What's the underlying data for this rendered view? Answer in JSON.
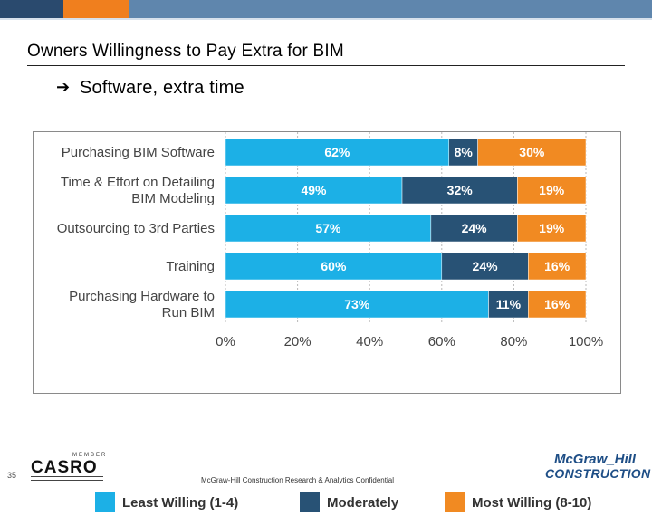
{
  "slide": {
    "title": "Owners Willingness to Pay Extra for BIM",
    "bullet_icon": "arrow-right-icon",
    "bullet_glyph": "➔",
    "bullet_text": "Software, extra time",
    "page_number": "35",
    "footer_text": "McGraw-Hill Construction Research & Analytics Confidential",
    "casro_logo_text": "CASRO",
    "casro_tagline": "MEMBER",
    "mh_logo_line1": "McGraw_Hill",
    "mh_logo_line2": "CONSTRUCTION"
  },
  "colors": {
    "least": "#1cb0e6",
    "moderately": "#285275",
    "most": "#f18a22",
    "topbar_dark": "#2a4a6e",
    "topbar_orange": "#f07f1e",
    "topbar_blue": "#5f86ad"
  },
  "chart_data": {
    "type": "bar",
    "orientation": "horizontal",
    "stacked": true,
    "categories": [
      "Purchasing BIM Software",
      "Time & Effort on Detailing BIM Modeling",
      "Outsourcing to 3rd Parties",
      "Training",
      "Purchasing Hardware to Run BIM"
    ],
    "category_lines": [
      [
        "Purchasing BIM Software"
      ],
      [
        "Time & Effort on Detailing",
        "BIM Modeling"
      ],
      [
        "Outsourcing to 3rd Parties"
      ],
      [
        "Training"
      ],
      [
        "Purchasing Hardware to",
        "Run BIM"
      ]
    ],
    "series": [
      {
        "name": "Least Willing (1-4)",
        "key": "least",
        "values": [
          62,
          49,
          57,
          60,
          73
        ],
        "labels": [
          "62%",
          "49%",
          "57%",
          "60%",
          "73%"
        ]
      },
      {
        "name": "Moderately",
        "key": "moderately",
        "values": [
          8,
          32,
          24,
          24,
          11
        ],
        "labels": [
          "8%",
          "32%",
          "24%",
          "24%",
          "11%"
        ]
      },
      {
        "name": "Most Willing (8-10)",
        "key": "most",
        "values": [
          30,
          19,
          19,
          16,
          16
        ],
        "labels": [
          "30%",
          "19%",
          "19%",
          "16%",
          "16%"
        ]
      }
    ],
    "x_ticks": [
      "0%",
      "20%",
      "40%",
      "60%",
      "80%",
      "100%"
    ],
    "x_tick_values": [
      0,
      20,
      40,
      60,
      80,
      100
    ],
    "xlim": [
      0,
      100
    ],
    "grid": true,
    "legend_position": "bottom",
    "legend": [
      "Least Willing (1-4)",
      "Moderately",
      "Most Willing (8-10)"
    ]
  }
}
